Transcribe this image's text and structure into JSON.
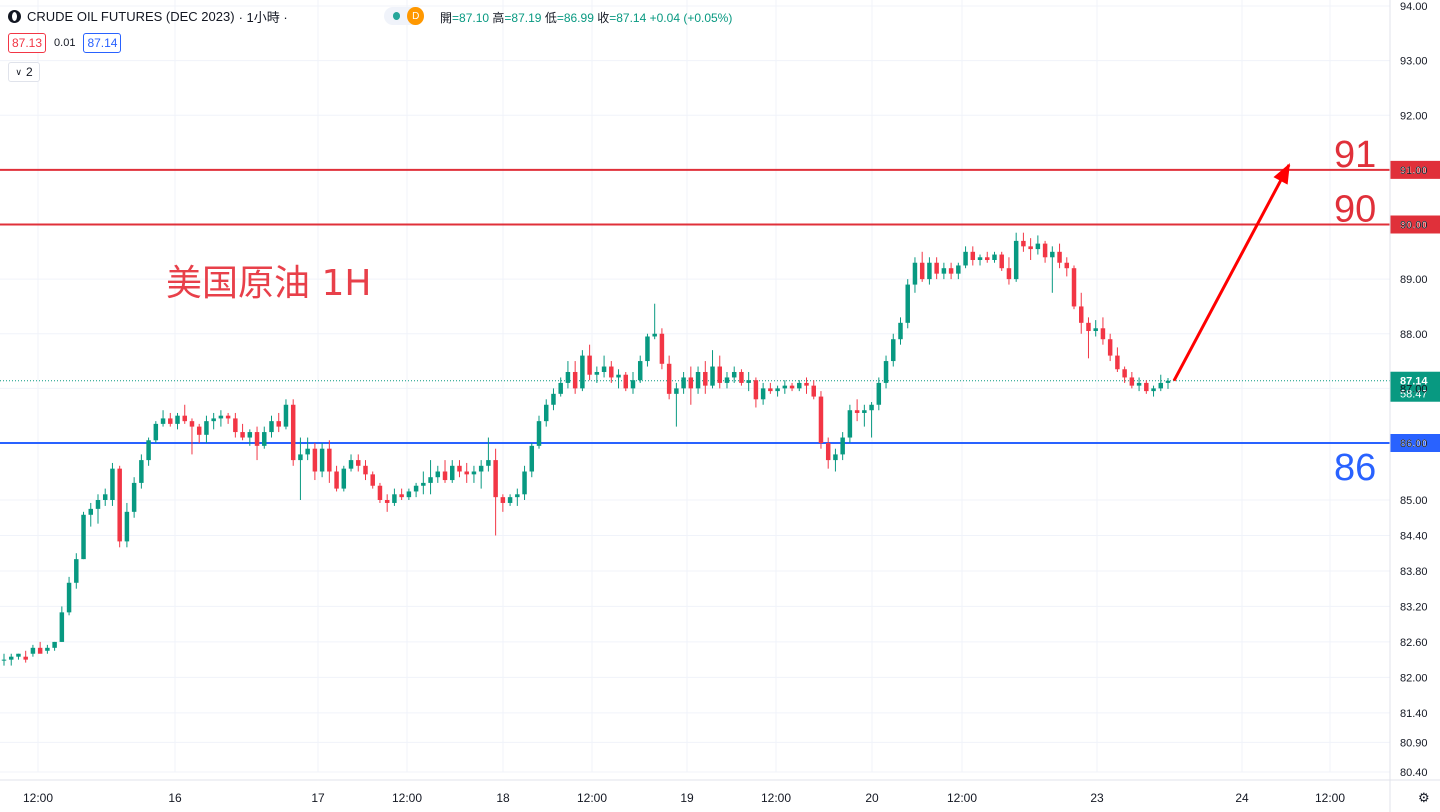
{
  "header": {
    "symbol": "CRUDE OIL FUTURES (DEC 2023)",
    "interval": "· 1小時 ·",
    "open_label": "開",
    "open": "=87.10",
    "high_label": "高",
    "high": "=87.19",
    "low_label": "低",
    "low": "=86.99",
    "close_label": "收",
    "close": "=87.14",
    "change": "+0.04 (+0.05%)",
    "market_status": "D"
  },
  "trade": {
    "sell": "87.13",
    "spread": "0.01",
    "buy": "87.14"
  },
  "indicators": {
    "count": "2"
  },
  "colors": {
    "up": "#089981",
    "down": "#f23645",
    "resistance": "#e0303a",
    "support": "#2962ff",
    "annotation_text": "#e8404a",
    "arrow": "#ff0000"
  },
  "chart_data": {
    "type": "candlestick",
    "title": "",
    "annotation": "美国原油 1H",
    "last_price": 87.14,
    "last_price_label": "87.14",
    "countdown": "58:47",
    "ylim": [
      80.18,
      94.02
    ],
    "y_ticks": [
      "94.00",
      "93.00",
      "92.00",
      "91.00",
      "90.00",
      "89.00",
      "88.00",
      "87.00",
      "86.00",
      "85.00",
      "84.40",
      "83.80",
      "83.20",
      "82.60",
      "82.00",
      "81.40",
      "80.90",
      "80.40"
    ],
    "x_ticks": [
      "12:00",
      "16",
      "17",
      "12:00",
      "18",
      "12:00",
      "19",
      "12:00",
      "20",
      "12:00",
      "23",
      "24",
      "12:00"
    ],
    "levels": [
      {
        "price": 91.0,
        "axis_label": "91.00",
        "text": "91",
        "color": "#e0303a"
      },
      {
        "price": 90.0,
        "axis_label": "90.00",
        "text": "90",
        "color": "#e0303a"
      },
      {
        "price": 86.0,
        "axis_label": "86.00",
        "text": "86",
        "color": "#2962ff"
      }
    ],
    "arrow": {
      "from_price": 87.14,
      "to_price": 91.2
    },
    "candles": [
      {
        "o": 82.3,
        "h": 82.4,
        "l": 82.2,
        "c": 82.3
      },
      {
        "o": 82.3,
        "h": 82.4,
        "l": 82.2,
        "c": 82.35
      },
      {
        "o": 82.35,
        "h": 82.4,
        "l": 82.3,
        "c": 82.4
      },
      {
        "o": 82.35,
        "h": 82.45,
        "l": 82.25,
        "c": 82.3
      },
      {
        "o": 82.4,
        "h": 82.55,
        "l": 82.35,
        "c": 82.5
      },
      {
        "o": 82.5,
        "h": 82.6,
        "l": 82.45,
        "c": 82.4
      },
      {
        "o": 82.45,
        "h": 82.55,
        "l": 82.4,
        "c": 82.5
      },
      {
        "o": 82.5,
        "h": 82.6,
        "l": 82.45,
        "c": 82.6
      },
      {
        "o": 82.6,
        "h": 83.2,
        "l": 82.6,
        "c": 83.1
      },
      {
        "o": 83.1,
        "h": 83.7,
        "l": 83.05,
        "c": 83.6
      },
      {
        "o": 83.6,
        "h": 84.1,
        "l": 83.5,
        "c": 84.0
      },
      {
        "o": 84.0,
        "h": 84.8,
        "l": 84.0,
        "c": 84.75
      },
      {
        "o": 84.75,
        "h": 84.95,
        "l": 84.55,
        "c": 84.85
      },
      {
        "o": 84.85,
        "h": 85.1,
        "l": 84.6,
        "c": 85.0
      },
      {
        "o": 85.0,
        "h": 85.2,
        "l": 84.9,
        "c": 85.1
      },
      {
        "o": 85.0,
        "h": 85.65,
        "l": 84.9,
        "c": 85.55
      },
      {
        "o": 85.55,
        "h": 85.6,
        "l": 84.2,
        "c": 84.3
      },
      {
        "o": 84.3,
        "h": 84.95,
        "l": 84.2,
        "c": 84.8
      },
      {
        "o": 84.8,
        "h": 85.4,
        "l": 84.7,
        "c": 85.3
      },
      {
        "o": 85.3,
        "h": 85.8,
        "l": 85.2,
        "c": 85.7
      },
      {
        "o": 85.7,
        "h": 86.1,
        "l": 85.6,
        "c": 86.05
      },
      {
        "o": 86.05,
        "h": 86.4,
        "l": 86.0,
        "c": 86.35
      },
      {
        "o": 86.35,
        "h": 86.6,
        "l": 86.3,
        "c": 86.45
      },
      {
        "o": 86.45,
        "h": 86.55,
        "l": 86.3,
        "c": 86.35
      },
      {
        "o": 86.35,
        "h": 86.55,
        "l": 86.25,
        "c": 86.5
      },
      {
        "o": 86.5,
        "h": 86.7,
        "l": 86.35,
        "c": 86.4
      },
      {
        "o": 86.4,
        "h": 86.45,
        "l": 85.8,
        "c": 86.3
      },
      {
        "o": 86.3,
        "h": 86.35,
        "l": 86.0,
        "c": 86.15
      },
      {
        "o": 86.15,
        "h": 86.5,
        "l": 86.0,
        "c": 86.4
      },
      {
        "o": 86.4,
        "h": 86.55,
        "l": 86.25,
        "c": 86.45
      },
      {
        "o": 86.45,
        "h": 86.6,
        "l": 86.3,
        "c": 86.5
      },
      {
        "o": 86.5,
        "h": 86.55,
        "l": 86.35,
        "c": 86.45
      },
      {
        "o": 86.45,
        "h": 86.55,
        "l": 86.1,
        "c": 86.2
      },
      {
        "o": 86.2,
        "h": 86.35,
        "l": 86.05,
        "c": 86.1
      },
      {
        "o": 86.1,
        "h": 86.25,
        "l": 85.95,
        "c": 86.2
      },
      {
        "o": 86.2,
        "h": 86.3,
        "l": 85.7,
        "c": 85.95
      },
      {
        "o": 85.95,
        "h": 86.3,
        "l": 85.9,
        "c": 86.2
      },
      {
        "o": 86.2,
        "h": 86.5,
        "l": 86.1,
        "c": 86.4
      },
      {
        "o": 86.4,
        "h": 86.55,
        "l": 86.2,
        "c": 86.3
      },
      {
        "o": 86.3,
        "h": 86.8,
        "l": 86.25,
        "c": 86.7
      },
      {
        "o": 86.7,
        "h": 86.8,
        "l": 85.6,
        "c": 85.7
      },
      {
        "o": 85.7,
        "h": 86.1,
        "l": 85.0,
        "c": 85.8
      },
      {
        "o": 85.8,
        "h": 86.1,
        "l": 85.7,
        "c": 85.9
      },
      {
        "o": 85.9,
        "h": 86.0,
        "l": 85.35,
        "c": 85.5
      },
      {
        "o": 85.5,
        "h": 86.0,
        "l": 85.4,
        "c": 85.9
      },
      {
        "o": 85.9,
        "h": 86.05,
        "l": 85.3,
        "c": 85.5
      },
      {
        "o": 85.5,
        "h": 85.6,
        "l": 85.15,
        "c": 85.2
      },
      {
        "o": 85.2,
        "h": 85.6,
        "l": 85.15,
        "c": 85.55
      },
      {
        "o": 85.55,
        "h": 85.8,
        "l": 85.5,
        "c": 85.7
      },
      {
        "o": 85.7,
        "h": 85.8,
        "l": 85.5,
        "c": 85.6
      },
      {
        "o": 85.6,
        "h": 85.7,
        "l": 85.35,
        "c": 85.45
      },
      {
        "o": 85.45,
        "h": 85.5,
        "l": 85.2,
        "c": 85.25
      },
      {
        "o": 85.25,
        "h": 85.3,
        "l": 84.95,
        "c": 85.0
      },
      {
        "o": 85.0,
        "h": 85.1,
        "l": 84.8,
        "c": 84.95
      },
      {
        "o": 84.95,
        "h": 85.2,
        "l": 84.9,
        "c": 85.1
      },
      {
        "o": 85.1,
        "h": 85.2,
        "l": 85.0,
        "c": 85.05
      },
      {
        "o": 85.05,
        "h": 85.2,
        "l": 85.0,
        "c": 85.15
      },
      {
        "o": 85.15,
        "h": 85.3,
        "l": 85.05,
        "c": 85.25
      },
      {
        "o": 85.25,
        "h": 85.5,
        "l": 85.1,
        "c": 85.3
      },
      {
        "o": 85.3,
        "h": 85.7,
        "l": 85.1,
        "c": 85.4
      },
      {
        "o": 85.4,
        "h": 85.6,
        "l": 85.3,
        "c": 85.5
      },
      {
        "o": 85.5,
        "h": 85.7,
        "l": 85.3,
        "c": 85.35
      },
      {
        "o": 85.35,
        "h": 85.7,
        "l": 85.3,
        "c": 85.6
      },
      {
        "o": 85.6,
        "h": 85.7,
        "l": 85.4,
        "c": 85.5
      },
      {
        "o": 85.5,
        "h": 85.65,
        "l": 85.3,
        "c": 85.45
      },
      {
        "o": 85.45,
        "h": 85.6,
        "l": 85.3,
        "c": 85.5
      },
      {
        "o": 85.5,
        "h": 85.7,
        "l": 85.2,
        "c": 85.6
      },
      {
        "o": 85.6,
        "h": 86.1,
        "l": 85.5,
        "c": 85.7
      },
      {
        "o": 85.7,
        "h": 85.9,
        "l": 84.4,
        "c": 85.05
      },
      {
        "o": 85.05,
        "h": 85.1,
        "l": 84.8,
        "c": 84.95
      },
      {
        "o": 84.95,
        "h": 85.1,
        "l": 84.9,
        "c": 85.05
      },
      {
        "o": 85.05,
        "h": 85.2,
        "l": 84.9,
        "c": 85.1
      },
      {
        "o": 85.1,
        "h": 85.6,
        "l": 85.0,
        "c": 85.5
      },
      {
        "o": 85.5,
        "h": 86.0,
        "l": 85.4,
        "c": 85.95
      },
      {
        "o": 85.95,
        "h": 86.5,
        "l": 85.9,
        "c": 86.4
      },
      {
        "o": 86.4,
        "h": 86.8,
        "l": 86.3,
        "c": 86.7
      },
      {
        "o": 86.7,
        "h": 87.0,
        "l": 86.6,
        "c": 86.9
      },
      {
        "o": 86.9,
        "h": 87.2,
        "l": 86.85,
        "c": 87.1
      },
      {
        "o": 87.1,
        "h": 87.5,
        "l": 87.0,
        "c": 87.3
      },
      {
        "o": 87.3,
        "h": 87.5,
        "l": 86.9,
        "c": 87.0
      },
      {
        "o": 87.0,
        "h": 87.7,
        "l": 86.95,
        "c": 87.6
      },
      {
        "o": 87.6,
        "h": 87.8,
        "l": 87.15,
        "c": 87.25
      },
      {
        "o": 87.25,
        "h": 87.4,
        "l": 87.1,
        "c": 87.3
      },
      {
        "o": 87.3,
        "h": 87.6,
        "l": 87.2,
        "c": 87.4
      },
      {
        "o": 87.4,
        "h": 87.5,
        "l": 87.1,
        "c": 87.2
      },
      {
        "o": 87.2,
        "h": 87.35,
        "l": 87.0,
        "c": 87.25
      },
      {
        "o": 87.25,
        "h": 87.3,
        "l": 86.95,
        "c": 87.0
      },
      {
        "o": 87.0,
        "h": 87.3,
        "l": 86.9,
        "c": 87.15
      },
      {
        "o": 87.15,
        "h": 87.6,
        "l": 87.1,
        "c": 87.5
      },
      {
        "o": 87.5,
        "h": 88.0,
        "l": 87.4,
        "c": 87.95
      },
      {
        "o": 87.95,
        "h": 88.55,
        "l": 87.9,
        "c": 88.0
      },
      {
        "o": 88.0,
        "h": 88.1,
        "l": 87.35,
        "c": 87.45
      },
      {
        "o": 87.45,
        "h": 87.6,
        "l": 86.8,
        "c": 86.9
      },
      {
        "o": 86.9,
        "h": 87.1,
        "l": 86.3,
        "c": 87.0
      },
      {
        "o": 87.0,
        "h": 87.3,
        "l": 86.9,
        "c": 87.2
      },
      {
        "o": 87.2,
        "h": 87.4,
        "l": 86.7,
        "c": 87.0
      },
      {
        "o": 87.0,
        "h": 87.4,
        "l": 86.9,
        "c": 87.3
      },
      {
        "o": 87.3,
        "h": 87.5,
        "l": 86.9,
        "c": 87.05
      },
      {
        "o": 87.05,
        "h": 87.7,
        "l": 87.0,
        "c": 87.4
      },
      {
        "o": 87.4,
        "h": 87.6,
        "l": 87.0,
        "c": 87.1
      },
      {
        "o": 87.1,
        "h": 87.3,
        "l": 87.0,
        "c": 87.2
      },
      {
        "o": 87.2,
        "h": 87.4,
        "l": 87.1,
        "c": 87.3
      },
      {
        "o": 87.3,
        "h": 87.35,
        "l": 87.05,
        "c": 87.1
      },
      {
        "o": 87.1,
        "h": 87.3,
        "l": 86.95,
        "c": 87.15
      },
      {
        "o": 87.15,
        "h": 87.2,
        "l": 86.65,
        "c": 86.8
      },
      {
        "o": 86.8,
        "h": 87.1,
        "l": 86.7,
        "c": 87.0
      },
      {
        "o": 87.0,
        "h": 87.1,
        "l": 86.9,
        "c": 86.95
      },
      {
        "o": 86.95,
        "h": 87.05,
        "l": 86.85,
        "c": 87.0
      },
      {
        "o": 87.0,
        "h": 87.15,
        "l": 86.9,
        "c": 87.05
      },
      {
        "o": 87.05,
        "h": 87.1,
        "l": 86.95,
        "c": 87.0
      },
      {
        "o": 87.0,
        "h": 87.15,
        "l": 86.95,
        "c": 87.1
      },
      {
        "o": 87.1,
        "h": 87.2,
        "l": 86.9,
        "c": 87.05
      },
      {
        "o": 87.05,
        "h": 87.15,
        "l": 86.8,
        "c": 86.85
      },
      {
        "o": 86.85,
        "h": 86.95,
        "l": 85.9,
        "c": 86.0
      },
      {
        "o": 86.0,
        "h": 86.1,
        "l": 85.55,
        "c": 85.7
      },
      {
        "o": 85.7,
        "h": 85.9,
        "l": 85.5,
        "c": 85.8
      },
      {
        "o": 85.8,
        "h": 86.2,
        "l": 85.7,
        "c": 86.1
      },
      {
        "o": 86.1,
        "h": 86.7,
        "l": 86.0,
        "c": 86.6
      },
      {
        "o": 86.6,
        "h": 86.8,
        "l": 86.4,
        "c": 86.55
      },
      {
        "o": 86.55,
        "h": 86.7,
        "l": 86.3,
        "c": 86.6
      },
      {
        "o": 86.6,
        "h": 86.75,
        "l": 86.1,
        "c": 86.7
      },
      {
        "o": 86.7,
        "h": 87.2,
        "l": 86.6,
        "c": 87.1
      },
      {
        "o": 87.1,
        "h": 87.6,
        "l": 87.0,
        "c": 87.5
      },
      {
        "o": 87.5,
        "h": 88.0,
        "l": 87.4,
        "c": 87.9
      },
      {
        "o": 87.9,
        "h": 88.3,
        "l": 87.8,
        "c": 88.2
      },
      {
        "o": 88.2,
        "h": 89.0,
        "l": 88.1,
        "c": 88.9
      },
      {
        "o": 88.9,
        "h": 89.4,
        "l": 88.75,
        "c": 89.3
      },
      {
        "o": 89.3,
        "h": 89.5,
        "l": 88.95,
        "c": 89.0
      },
      {
        "o": 89.0,
        "h": 89.4,
        "l": 88.9,
        "c": 89.3
      },
      {
        "o": 89.3,
        "h": 89.4,
        "l": 89.0,
        "c": 89.1
      },
      {
        "o": 89.1,
        "h": 89.3,
        "l": 89.0,
        "c": 89.2
      },
      {
        "o": 89.2,
        "h": 89.3,
        "l": 89.0,
        "c": 89.1
      },
      {
        "o": 89.1,
        "h": 89.3,
        "l": 89.0,
        "c": 89.25
      },
      {
        "o": 89.25,
        "h": 89.6,
        "l": 89.2,
        "c": 89.5
      },
      {
        "o": 89.5,
        "h": 89.6,
        "l": 89.25,
        "c": 89.35
      },
      {
        "o": 89.35,
        "h": 89.45,
        "l": 89.25,
        "c": 89.4
      },
      {
        "o": 89.4,
        "h": 89.5,
        "l": 89.3,
        "c": 89.35
      },
      {
        "o": 89.35,
        "h": 89.5,
        "l": 89.3,
        "c": 89.45
      },
      {
        "o": 89.45,
        "h": 89.5,
        "l": 89.15,
        "c": 89.2
      },
      {
        "o": 89.2,
        "h": 89.4,
        "l": 88.9,
        "c": 89.0
      },
      {
        "o": 89.0,
        "h": 89.85,
        "l": 88.95,
        "c": 89.7
      },
      {
        "o": 89.7,
        "h": 89.85,
        "l": 89.5,
        "c": 89.6
      },
      {
        "o": 89.6,
        "h": 89.75,
        "l": 89.35,
        "c": 89.55
      },
      {
        "o": 89.55,
        "h": 89.8,
        "l": 89.45,
        "c": 89.65
      },
      {
        "o": 89.65,
        "h": 89.7,
        "l": 89.3,
        "c": 89.4
      },
      {
        "o": 89.4,
        "h": 89.6,
        "l": 88.75,
        "c": 89.5
      },
      {
        "o": 89.5,
        "h": 89.65,
        "l": 89.2,
        "c": 89.3
      },
      {
        "o": 89.3,
        "h": 89.4,
        "l": 89.05,
        "c": 89.2
      },
      {
        "o": 89.2,
        "h": 89.25,
        "l": 88.45,
        "c": 88.5
      },
      {
        "o": 88.5,
        "h": 88.75,
        "l": 88.0,
        "c": 88.2
      },
      {
        "o": 88.2,
        "h": 88.3,
        "l": 87.55,
        "c": 88.05
      },
      {
        "o": 88.05,
        "h": 88.25,
        "l": 87.95,
        "c": 88.1
      },
      {
        "o": 88.1,
        "h": 88.3,
        "l": 87.8,
        "c": 87.9
      },
      {
        "o": 87.9,
        "h": 88.0,
        "l": 87.5,
        "c": 87.6
      },
      {
        "o": 87.6,
        "h": 87.75,
        "l": 87.3,
        "c": 87.35
      },
      {
        "o": 87.35,
        "h": 87.4,
        "l": 87.1,
        "c": 87.2
      },
      {
        "o": 87.2,
        "h": 87.3,
        "l": 87.0,
        "c": 87.05
      },
      {
        "o": 87.05,
        "h": 87.2,
        "l": 86.95,
        "c": 87.1
      },
      {
        "o": 87.1,
        "h": 87.15,
        "l": 86.9,
        "c": 86.95
      },
      {
        "o": 86.95,
        "h": 87.05,
        "l": 86.85,
        "c": 87.0
      },
      {
        "o": 87.0,
        "h": 87.25,
        "l": 86.95,
        "c": 87.1
      },
      {
        "o": 87.1,
        "h": 87.19,
        "l": 86.99,
        "c": 87.14
      }
    ]
  }
}
